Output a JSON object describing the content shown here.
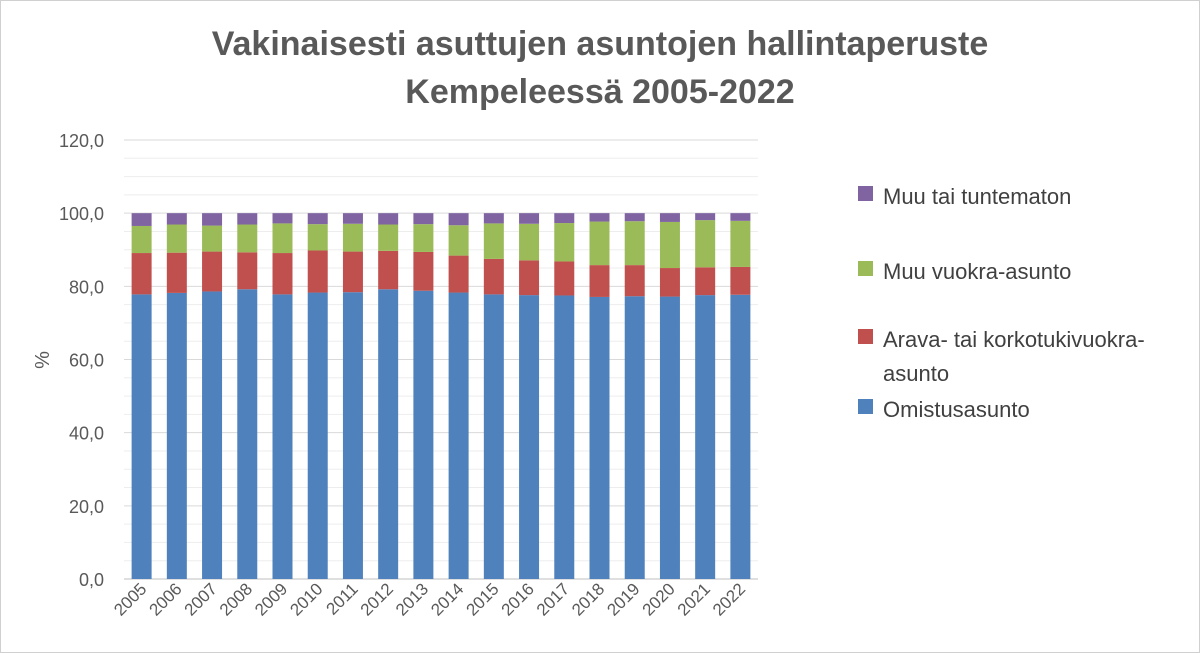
{
  "chart_data": {
    "type": "bar",
    "stacked": true,
    "title_lines": [
      "Vakinaisesti asuttujen asuntojen hallintaperuste",
      "Kempeleessä 2005-2022"
    ],
    "ylabel": "%",
    "xlabel": "",
    "ylim": [
      0,
      120
    ],
    "yticks": [
      "0,0",
      "20,0",
      "40,0",
      "60,0",
      "80,0",
      "100,0",
      "120,0"
    ],
    "grid": true,
    "legend_position": "right",
    "categories": [
      "2005",
      "2006",
      "2007",
      "2008",
      "2009",
      "2010",
      "2011",
      "2012",
      "2013",
      "2014",
      "2015",
      "2016",
      "2017",
      "2018",
      "2019",
      "2020",
      "2021",
      "2022"
    ],
    "series": [
      {
        "name": "Omistusasunto",
        "color": "#4F81BD",
        "values": [
          77.8,
          78.2,
          78.6,
          79.2,
          77.8,
          78.3,
          78.4,
          79.2,
          78.8,
          78.3,
          77.8,
          77.6,
          77.5,
          77.1,
          77.3,
          77.2,
          77.6,
          77.7
        ]
      },
      {
        "name": "Arava- tai korkotukivuokra-asunto",
        "color": "#C0504D",
        "values": [
          11.3,
          11.0,
          10.9,
          10.1,
          11.3,
          11.5,
          11.1,
          10.5,
          10.6,
          10.1,
          9.7,
          9.5,
          9.3,
          8.7,
          8.5,
          7.8,
          7.6,
          7.6
        ]
      },
      {
        "name": "Muu vuokra-asunto",
        "color": "#9BBB59",
        "values": [
          7.4,
          7.7,
          7.1,
          7.6,
          8.1,
          7.2,
          7.6,
          7.2,
          7.6,
          8.3,
          9.7,
          10.0,
          10.5,
          11.9,
          12.0,
          12.6,
          12.9,
          12.6
        ]
      },
      {
        "name": "Muu tai tuntematon",
        "color": "#8064A2",
        "values": [
          3.5,
          3.1,
          3.4,
          3.1,
          2.8,
          3.0,
          2.9,
          3.1,
          3.0,
          3.3,
          2.8,
          2.9,
          2.7,
          2.3,
          2.2,
          2.4,
          1.9,
          2.1
        ]
      }
    ]
  },
  "legend": {
    "items": [
      {
        "label": "Muu tai tuntematon",
        "color": "#8064A2"
      },
      {
        "label": "Muu vuokra-asunto",
        "color": "#9BBB59"
      },
      {
        "label": "Arava- tai korkotukivuokra-asunto",
        "color": "#C0504D"
      },
      {
        "label": "Omistusasunto",
        "color": "#4F81BD"
      }
    ]
  }
}
